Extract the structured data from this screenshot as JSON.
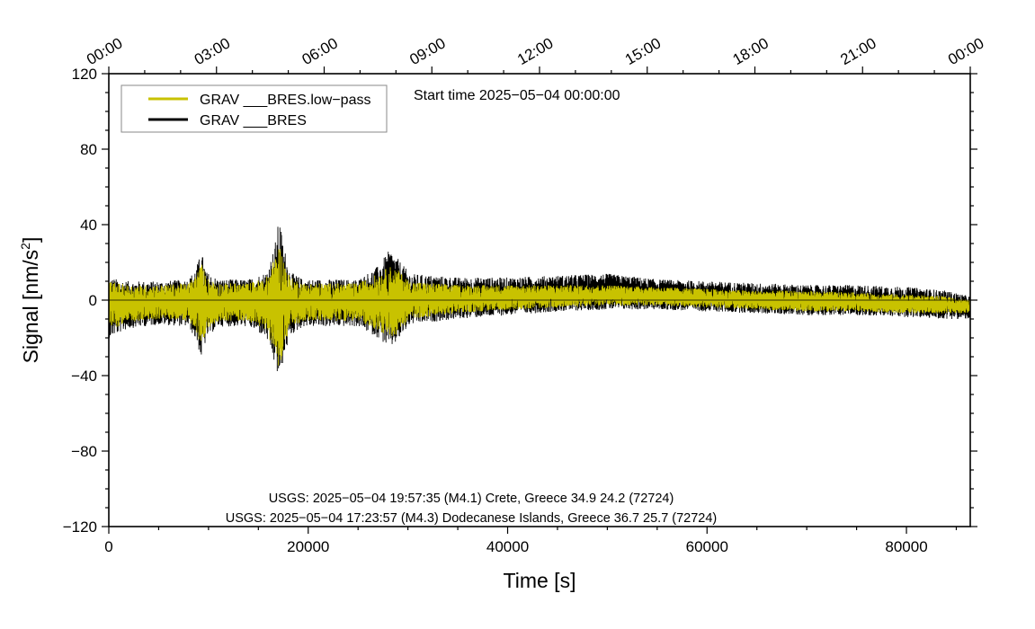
{
  "chart_data": {
    "type": "line",
    "xlabel": "Time [s]",
    "ylabel": "Signal [nm/s",
    "ylabel_sup": "2",
    "ylabel_end": "]",
    "xlim": [
      0,
      86400
    ],
    "ylim": [
      -120,
      120
    ],
    "x_ticks": [
      0,
      20000,
      40000,
      60000,
      80000
    ],
    "x_tick_labels": [
      "0",
      "20000",
      "40000",
      "60000",
      "80000"
    ],
    "y_ticks": [
      120,
      80,
      40,
      0,
      -40,
      -80,
      -120
    ],
    "y_tick_labels": [
      "120",
      "80",
      "40",
      "0",
      "−40",
      "−80",
      "−120"
    ],
    "top_ticks": [
      0,
      10800,
      21600,
      32400,
      43200,
      54000,
      64800,
      75600,
      86400
    ],
    "top_tick_labels": [
      "00:00",
      "03:00",
      "06:00",
      "09:00",
      "12:00",
      "15:00",
      "18:00",
      "21:00",
      "00:00"
    ],
    "start_time": "Start time 2025−05−04 00:00:00",
    "annotations": [
      "USGS: 2025−05−04 19:57:35 (M4.1) Crete, Greece 34.9 24.2 (72724)",
      "USGS: 2025−05−04 17:23:57 (M4.3) Dodecanese Islands, Greece 36.7 25.7 (72724)"
    ],
    "legend_position": "top-left",
    "series": [
      {
        "name": "GRAV ___BRES.low−pass",
        "color": "#c8c200",
        "envelope_x": [
          0,
          2000,
          5000,
          8000,
          8800,
          9300,
          9800,
          11000,
          14000,
          15800,
          16600,
          17100,
          17500,
          18200,
          19500,
          22000,
          25000,
          27000,
          28200,
          29000,
          30200,
          35000,
          40000,
          45000,
          50000,
          55000,
          60000,
          65000,
          70000,
          75000,
          80000,
          84000,
          86400
        ],
        "envelope_upper": [
          10,
          8,
          8,
          9,
          14,
          20,
          12,
          9,
          9,
          12,
          22,
          30,
          22,
          12,
          9,
          9,
          9,
          14,
          18,
          16,
          10,
          8,
          8,
          8,
          8,
          7,
          6,
          5,
          5,
          4,
          3,
          2,
          0
        ],
        "envelope_lower": [
          -16,
          -12,
          -10,
          -11,
          -18,
          -26,
          -16,
          -11,
          -11,
          -16,
          -28,
          -36,
          -26,
          -15,
          -11,
          -11,
          -11,
          -16,
          -20,
          -18,
          -10,
          -7,
          -5,
          -4,
          -3,
          -3,
          -4,
          -5,
          -6,
          -6,
          -7,
          -7,
          -7
        ]
      },
      {
        "name": "GRAV ___BRES",
        "color": "#000000",
        "envelope_x": [
          0,
          2000,
          5000,
          8000,
          8800,
          9300,
          9800,
          11000,
          14000,
          15800,
          16600,
          17100,
          17500,
          18200,
          19500,
          22000,
          25000,
          27000,
          28200,
          29000,
          30200,
          35000,
          40000,
          45000,
          50000,
          55000,
          60000,
          65000,
          70000,
          75000,
          80000,
          84000,
          86400
        ],
        "envelope_upper": [
          12,
          10,
          10,
          11,
          18,
          26,
          15,
          11,
          11,
          15,
          28,
          44,
          30,
          15,
          11,
          11,
          11,
          18,
          27,
          22,
          14,
          12,
          12,
          13,
          14,
          11,
          10,
          9,
          8,
          8,
          7,
          5,
          2
        ],
        "envelope_lower": [
          -20,
          -15,
          -13,
          -14,
          -22,
          -32,
          -20,
          -14,
          -14,
          -20,
          -34,
          -44,
          -32,
          -19,
          -14,
          -14,
          -14,
          -20,
          -26,
          -22,
          -13,
          -10,
          -8,
          -6,
          -5,
          -5,
          -6,
          -7,
          -8,
          -8,
          -9,
          -10,
          -10
        ]
      }
    ]
  }
}
